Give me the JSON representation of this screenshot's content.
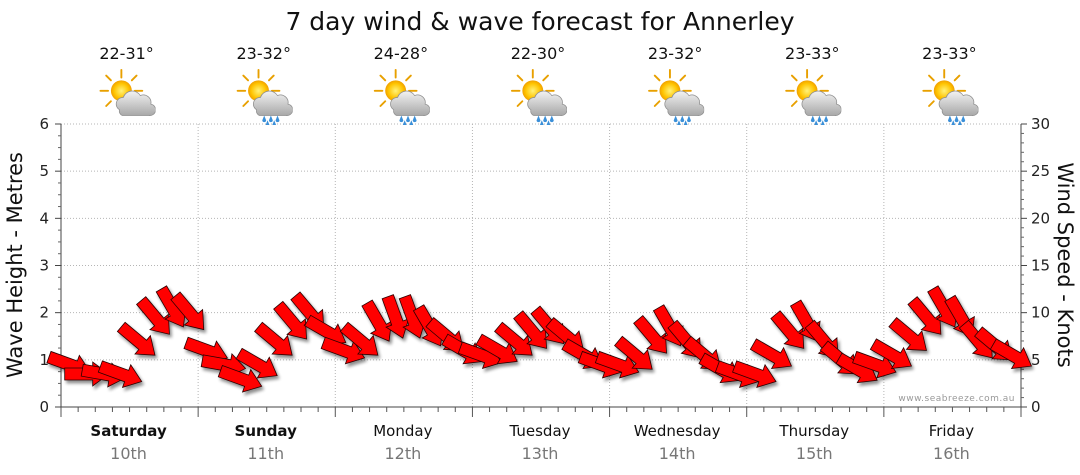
{
  "chart_data": {
    "type": "line",
    "title": "7 day wind & wave forecast for Annerley",
    "ylabel_left": "Wave Height - Metres",
    "ylabel_right": "Wind Speed - Knots",
    "ylim_left": [
      0,
      6
    ],
    "ylim_right": [
      0,
      30
    ],
    "yticks_left": [
      "0",
      "1",
      "2",
      "3",
      "4",
      "5",
      "6"
    ],
    "yticks_right": [
      "0",
      "5",
      "10",
      "15",
      "20",
      "25",
      "30"
    ],
    "grid": true,
    "watermark": "www.seabreeze.com.au",
    "days": [
      {
        "day": "Saturday",
        "date": "10th",
        "temp": "22-31°",
        "weather_icon": "sun-cloud-icon",
        "bold": true
      },
      {
        "day": "Sunday",
        "date": "11th",
        "temp": "23-32°",
        "weather_icon": "sun-cloud-rain-icon",
        "bold": true
      },
      {
        "day": "Monday",
        "date": "12th",
        "temp": "24-28°",
        "weather_icon": "sun-cloud-rain-icon",
        "bold": false
      },
      {
        "day": "Tuesday",
        "date": "13th",
        "temp": "22-30°",
        "weather_icon": "sun-cloud-rain-icon",
        "bold": false
      },
      {
        "day": "Wednesday",
        "date": "14th",
        "temp": "23-32°",
        "weather_icon": "sun-cloud-rain-icon",
        "bold": false
      },
      {
        "day": "Thursday",
        "date": "15th",
        "temp": "23-33°",
        "weather_icon": "sun-cloud-rain-icon",
        "bold": false
      },
      {
        "day": "Friday",
        "date": "16th",
        "temp": "23-33°",
        "weather_icon": "sun-cloud-rain-icon",
        "bold": false
      }
    ],
    "wind_series": {
      "name": "Wind",
      "color": "#ff0000",
      "x_days": [
        0.0,
        0.125,
        0.25,
        0.375,
        0.5,
        0.625,
        0.75,
        0.875,
        1.0,
        1.125,
        1.25,
        1.375,
        1.5,
        1.625,
        1.75,
        1.875,
        2.0,
        2.125,
        2.25,
        2.375,
        2.5,
        2.625,
        2.75,
        2.875,
        3.0,
        3.125,
        3.25,
        3.375,
        3.5,
        3.625,
        3.75,
        3.875,
        4.0,
        4.125,
        4.25,
        4.375,
        4.5,
        4.625,
        4.75,
        4.875,
        5.0,
        5.125,
        5.25,
        5.375,
        5.5,
        5.625,
        5.75,
        5.875,
        6.0,
        6.125,
        6.25,
        6.375,
        6.5,
        6.625,
        6.75,
        6.875
      ],
      "knots": [
        4.5,
        3.5,
        3.5,
        3.5,
        7,
        9.5,
        10.5,
        10,
        6,
        4.5,
        3,
        4.5,
        7,
        9,
        10,
        8,
        6,
        7,
        9,
        9.5,
        9.5,
        8.5,
        7.5,
        6,
        5.5,
        6,
        7,
        8,
        8.5,
        7.5,
        5.5,
        4.5,
        4.5,
        5.5,
        7.5,
        8.5,
        7,
        5.5,
        4,
        3.5,
        3.5,
        5.5,
        8,
        9,
        7,
        5,
        4,
        4.5,
        5.5,
        7.5,
        9.5,
        10.5,
        9.5,
        7,
        6.5,
        5.5
      ],
      "direction_deg": [
        200,
        180,
        190,
        200,
        220,
        230,
        240,
        230,
        200,
        190,
        200,
        210,
        220,
        230,
        230,
        210,
        200,
        220,
        240,
        250,
        250,
        240,
        220,
        210,
        200,
        210,
        220,
        230,
        230,
        220,
        210,
        200,
        200,
        220,
        230,
        240,
        230,
        220,
        210,
        200,
        200,
        210,
        230,
        240,
        230,
        220,
        210,
        200,
        210,
        220,
        230,
        240,
        240,
        230,
        220,
        210
      ]
    }
  }
}
